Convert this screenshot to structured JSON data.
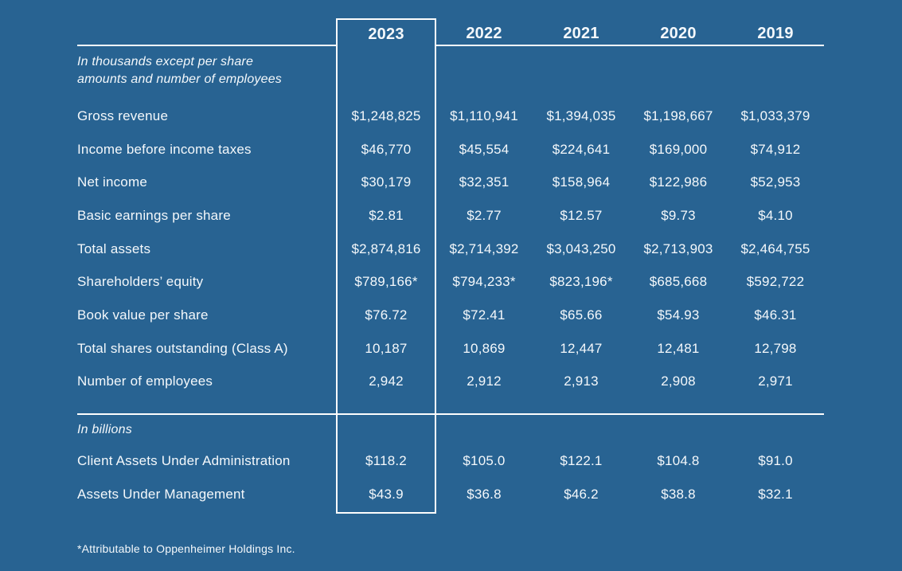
{
  "meta": {
    "background_color": "#286392",
    "line_color": "#fdfdfd",
    "text_color": "#f4f8fb",
    "highlighted_year": "2023"
  },
  "table": {
    "years": [
      "2023",
      "2022",
      "2021",
      "2020",
      "2019"
    ],
    "units_note": [
      "In thousands except per share",
      "amounts and number of employees"
    ],
    "rows": [
      {
        "label": "Gross revenue",
        "values": [
          "$1,248,825",
          "$1,110,941",
          "$1,394,035",
          "$1,198,667",
          "$1,033,379"
        ]
      },
      {
        "label": "Income before income taxes",
        "values": [
          "$46,770",
          "$45,554",
          "$224,641",
          "$169,000",
          "$74,912"
        ]
      },
      {
        "label": "Net income",
        "values": [
          "$30,179",
          "$32,351",
          "$158,964",
          "$122,986",
          "$52,953"
        ]
      },
      {
        "label": "Basic earnings per share",
        "values": [
          "$2.81",
          "$2.77",
          "$12.57",
          "$9.73",
          "$4.10"
        ]
      },
      {
        "label": "Total assets",
        "values": [
          "$2,874,816",
          "$2,714,392",
          "$3,043,250",
          "$2,713,903",
          "$2,464,755"
        ]
      },
      {
        "label": "Shareholders’ equity",
        "values": [
          "$789,166*",
          "$794,233*",
          "$823,196*",
          "$685,668",
          "$592,722"
        ]
      },
      {
        "label": "Book value per share",
        "values": [
          "$76.72",
          "$72.41",
          "$65.66",
          "$54.93",
          "$46.31"
        ]
      },
      {
        "label": "Total shares outstanding (Class A)",
        "values": [
          "10,187",
          "10,869",
          "12,447",
          "12,481",
          "12,798"
        ]
      },
      {
        "label": "Number of employees",
        "values": [
          "2,942",
          "2,912",
          "2,913",
          "2,908",
          "2,971"
        ]
      }
    ],
    "section2_note": "In billions",
    "rows2": [
      {
        "label": "Client Assets Under Administration",
        "values": [
          "$118.2",
          "$105.0",
          "$122.1",
          "$104.8",
          "$91.0"
        ]
      },
      {
        "label": "Assets Under Management",
        "values": [
          "$43.9",
          "$36.8",
          "$46.2",
          "$38.8",
          "$32.1"
        ]
      }
    ],
    "footnote": "*Attributable to Oppenheimer Holdings Inc."
  }
}
